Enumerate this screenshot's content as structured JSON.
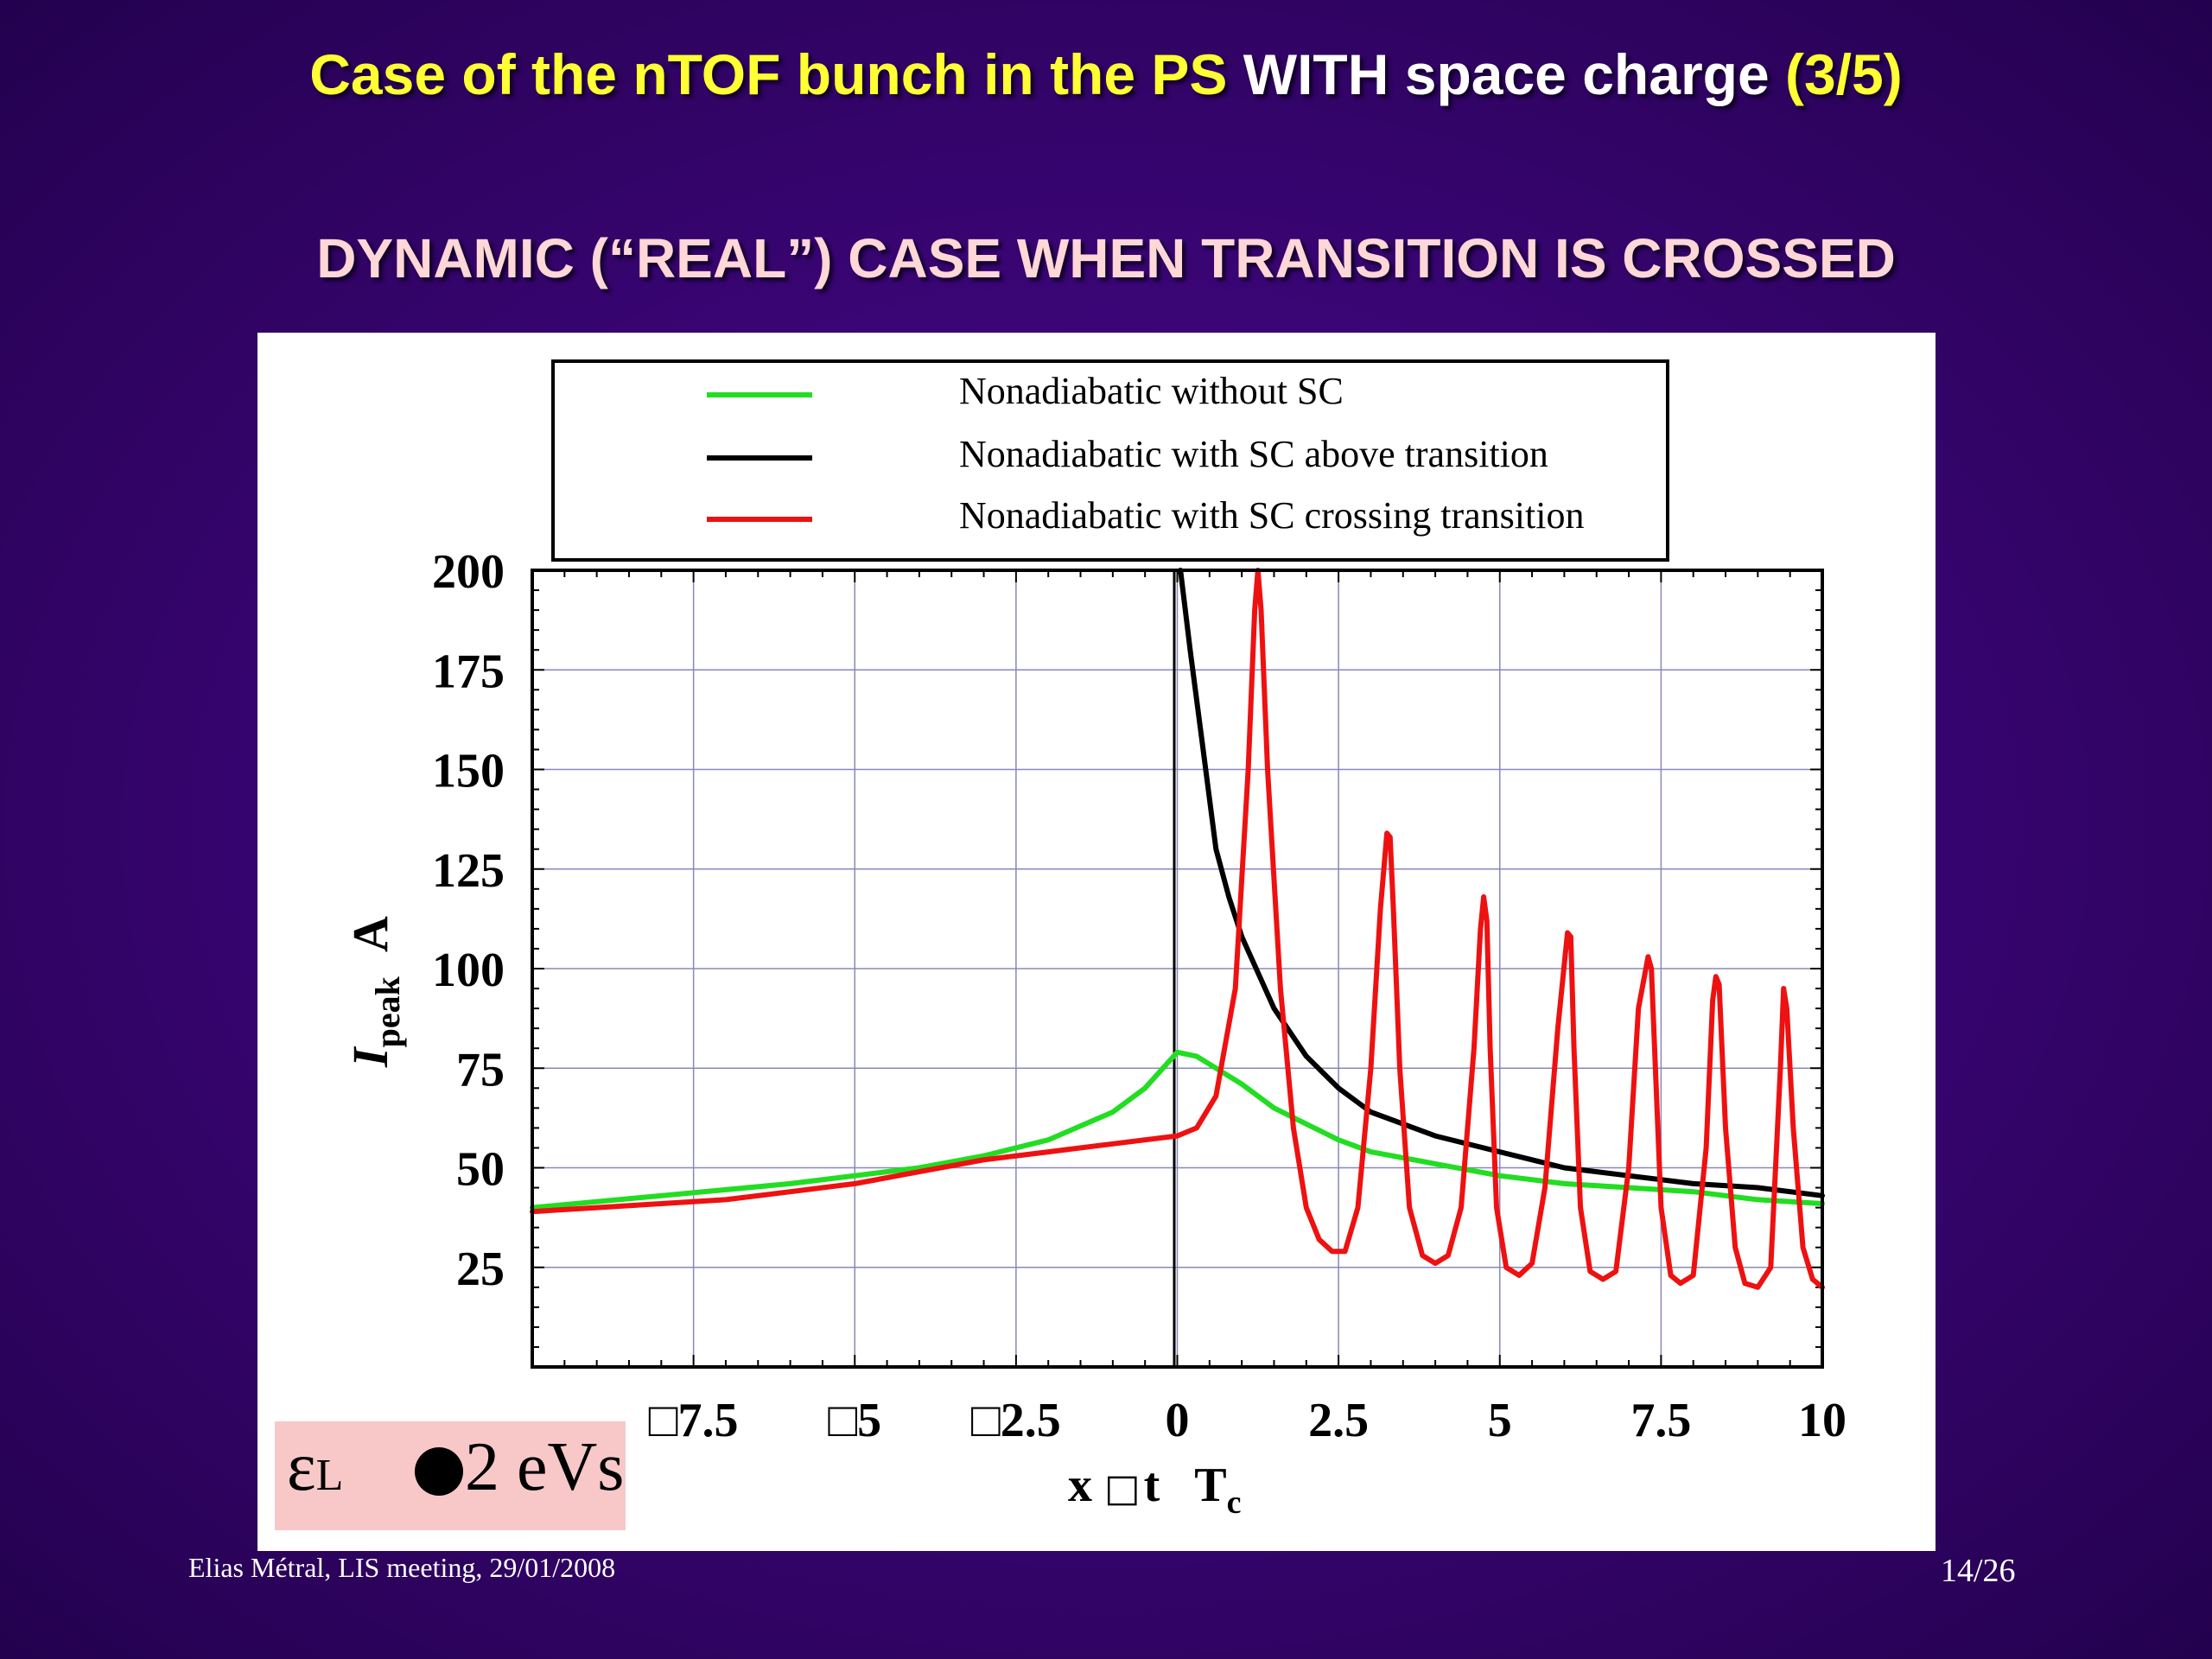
{
  "slide": {
    "title_part1": "Case of the nTOF bunch in the PS",
    "title_part2": "WITH space charge",
    "title_part3": "(3/5)",
    "subtitle": "DYNAMIC (“REAL”) CASE WHEN TRANSITION IS CROSSED",
    "footer_left": "Elias Métral, LIS meeting, 29/01/2008",
    "footer_right": "14/26",
    "emittance_symbol": "ε",
    "emittance_sub": "L",
    "emittance_value": "2 eVs"
  },
  "chart_data": {
    "type": "line",
    "x_tick_labels": [
      "□7.5",
      "□5",
      "□2.5",
      "0",
      "2.5",
      "5",
      "7.5",
      "10"
    ],
    "x_tick_values": [
      -7.5,
      -5,
      -2.5,
      0,
      2.5,
      5,
      7.5,
      10
    ],
    "y_tick_labels": [
      "25",
      "50",
      "75",
      "100",
      "125",
      "150",
      "175",
      "200"
    ],
    "y_tick_values": [
      25,
      50,
      75,
      100,
      125,
      150,
      175,
      200
    ],
    "xlim": [
      -10,
      10
    ],
    "ylim": [
      0,
      200
    ],
    "grid": true,
    "legend_position": "top",
    "xlabel": {
      "x": "x",
      "box": "□",
      "t": "t",
      "T": "T",
      "c": "c"
    },
    "ylabel": {
      "I": "I",
      "peak": "peak",
      "A": "A"
    },
    "series": [
      {
        "name": "Nonadiabatic without SC",
        "color": "#22dd22",
        "x": [
          -10,
          -8,
          -6,
          -4,
          -3,
          -2,
          -1,
          -0.5,
          0,
          0.3,
          1,
          1.5,
          2,
          2.5,
          3,
          4,
          5,
          6,
          7,
          8,
          9,
          10
        ],
        "y": [
          40,
          43,
          46,
          50,
          53,
          57,
          64,
          70,
          79,
          78,
          71,
          65,
          61,
          57,
          54,
          51,
          48,
          46,
          45,
          44,
          42,
          41
        ]
      },
      {
        "name": "Nonadiabatic with SC above transition",
        "color": "#000000",
        "x": [
          0.05,
          0.2,
          0.4,
          0.6,
          0.8,
          1,
          1.5,
          2,
          2.5,
          3,
          4,
          5,
          6,
          7,
          8,
          9,
          10
        ],
        "y": [
          200,
          180,
          155,
          130,
          118,
          108,
          90,
          78,
          70,
          64,
          58,
          54,
          50,
          48,
          46,
          45,
          43
        ]
      },
      {
        "name": "Nonadiabatic with SC crossing transition",
        "color": "#ee1111",
        "x": [
          -10,
          -9,
          -8,
          -7,
          -6,
          -5,
          -4,
          -3,
          -2,
          -1,
          -0.5,
          0,
          0.3,
          0.6,
          0.9,
          1.1,
          1.2,
          1.25,
          1.3,
          1.4,
          1.6,
          1.8,
          2.0,
          2.2,
          2.4,
          2.6,
          2.8,
          3.0,
          3.15,
          3.25,
          3.3,
          3.35,
          3.45,
          3.6,
          3.8,
          4.0,
          4.2,
          4.4,
          4.6,
          4.7,
          4.75,
          4.8,
          4.85,
          4.95,
          5.1,
          5.3,
          5.5,
          5.7,
          5.9,
          6.05,
          6.1,
          6.15,
          6.25,
          6.4,
          6.6,
          6.8,
          7.0,
          7.15,
          7.3,
          7.35,
          7.4,
          7.5,
          7.65,
          7.8,
          8.0,
          8.2,
          8.3,
          8.35,
          8.4,
          8.5,
          8.65,
          8.8,
          9.0,
          9.2,
          9.35,
          9.4,
          9.45,
          9.55,
          9.7,
          9.85,
          10.0
        ],
        "y": [
          39,
          40,
          41,
          42,
          44,
          46,
          49,
          52,
          54,
          56,
          57,
          58,
          60,
          68,
          95,
          150,
          190,
          200,
          190,
          150,
          95,
          60,
          40,
          32,
          29,
          29,
          40,
          75,
          115,
          134,
          133,
          115,
          75,
          40,
          28,
          26,
          28,
          40,
          80,
          110,
          118,
          112,
          80,
          40,
          25,
          23,
          26,
          45,
          85,
          109,
          108,
          80,
          40,
          24,
          22,
          24,
          50,
          90,
          103,
          100,
          80,
          40,
          23,
          21,
          23,
          55,
          92,
          98,
          96,
          60,
          30,
          21,
          20,
          25,
          75,
          95,
          90,
          60,
          30,
          22,
          20
        ]
      }
    ]
  }
}
